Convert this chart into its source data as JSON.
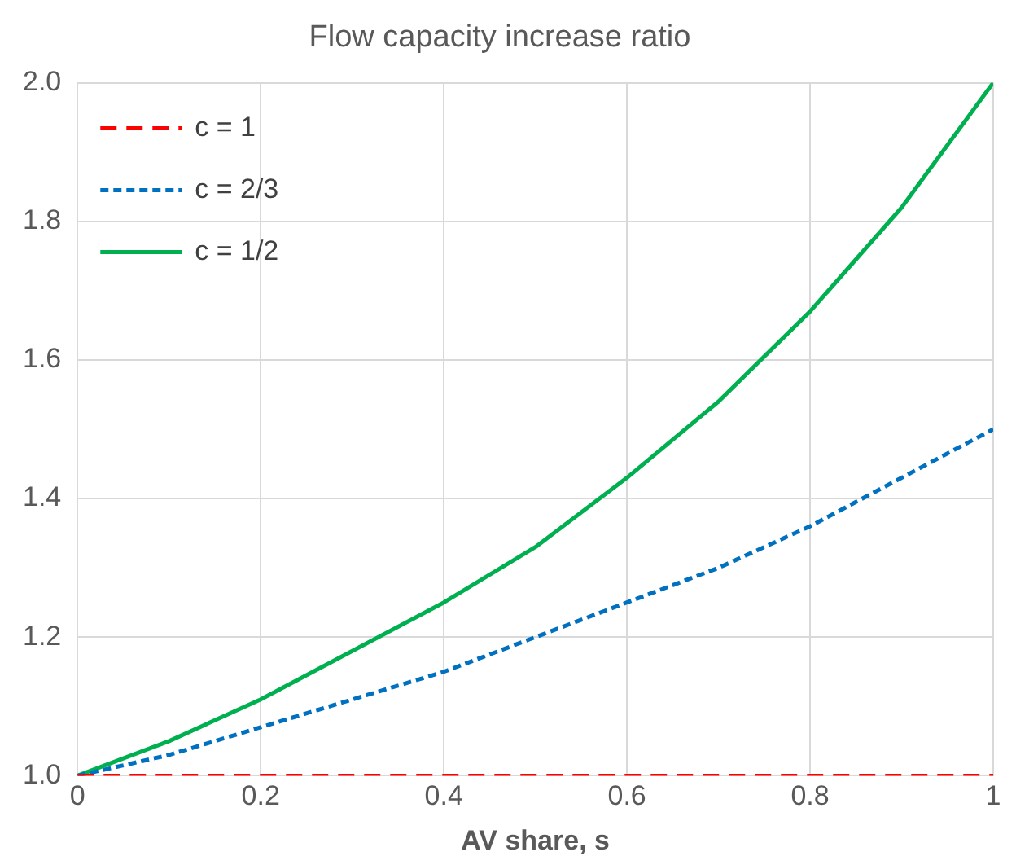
{
  "chart_data": {
    "type": "line",
    "title": "Flow capacity increase ratio",
    "xlabel": "AV share, s",
    "x": [
      0,
      0.1,
      0.2,
      0.3,
      0.4,
      0.5,
      0.6,
      0.7,
      0.8,
      0.9,
      1
    ],
    "series": [
      {
        "name": "c = 1",
        "color": "#ff0000",
        "line_style": "dashed",
        "values": [
          1,
          1,
          1,
          1,
          1,
          1,
          1,
          1,
          1,
          1,
          1
        ]
      },
      {
        "name": "c = 2/3",
        "color": "#0070c0",
        "line_style": "dotted",
        "values": [
          1,
          1.03,
          1.07,
          1.11,
          1.15,
          1.2,
          1.25,
          1.3,
          1.36,
          1.43,
          1.5
        ]
      },
      {
        "name": "c = 1/2",
        "color": "#00b050",
        "line_style": "solid",
        "values": [
          1,
          1.05,
          1.11,
          1.18,
          1.25,
          1.33,
          1.43,
          1.54,
          1.67,
          1.82,
          2
        ]
      }
    ],
    "xlim": [
      0,
      1
    ],
    "xticks": [
      0,
      0.2,
      0.4,
      0.6,
      0.8,
      1
    ],
    "ylim": [
      1,
      2
    ],
    "yticks": [
      {
        "value": 1,
        "label": "1.0"
      },
      1.2,
      1.4,
      1.6,
      1.8,
      {
        "value": 2,
        "label": "2.0"
      }
    ],
    "grid": true,
    "legend": "top left",
    "marker": "none"
  }
}
